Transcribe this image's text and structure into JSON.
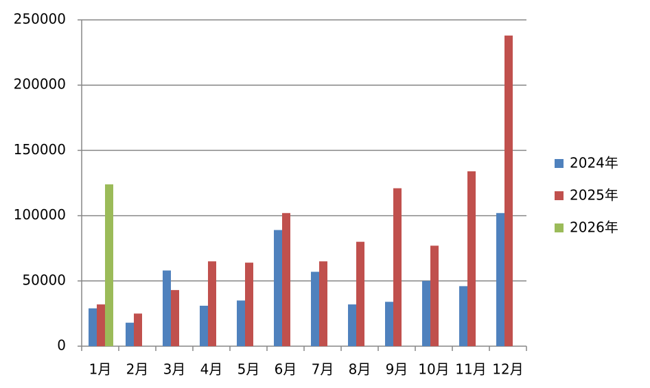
{
  "chart_data": {
    "type": "bar",
    "categories": [
      "1月",
      "2月",
      "3月",
      "4月",
      "5月",
      "6月",
      "7月",
      "8月",
      "9月",
      "10月",
      "11月",
      "12月"
    ],
    "series": [
      {
        "name": "2024年",
        "color": "#4f81bd",
        "values": [
          29000,
          18000,
          58000,
          31000,
          35000,
          89000,
          57000,
          32000,
          34000,
          50000,
          46000,
          102000
        ]
      },
      {
        "name": "2025年",
        "color": "#c0504d",
        "values": [
          32000,
          25000,
          43000,
          65000,
          64000,
          102000,
          65000,
          80000,
          121000,
          77000,
          134000,
          238000
        ]
      },
      {
        "name": "2026年",
        "color": "#9bbb59",
        "values": [
          124000,
          null,
          null,
          null,
          null,
          null,
          null,
          null,
          null,
          null,
          null,
          null
        ]
      }
    ],
    "ylim": [
      0,
      250000
    ],
    "yticks": [
      0,
      50000,
      100000,
      150000,
      200000,
      250000
    ],
    "grid": true,
    "legend": "right"
  }
}
